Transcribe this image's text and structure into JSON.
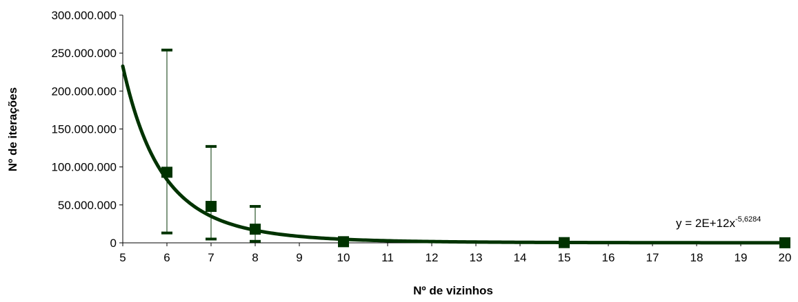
{
  "chart_data": {
    "type": "scatter",
    "title": "",
    "xlabel": "Nº de vizinhos",
    "ylabel": "Nº de iterações",
    "xlim": [
      5,
      20
    ],
    "ylim": [
      0,
      300000000
    ],
    "x_ticks": [
      5,
      6,
      7,
      8,
      9,
      10,
      11,
      12,
      13,
      14,
      15,
      16,
      17,
      18,
      19,
      20
    ],
    "x_tick_labels": [
      "5",
      "6",
      "7",
      "8",
      "9",
      "10",
      "11",
      "12",
      "13",
      "14",
      "15",
      "16",
      "17",
      "18",
      "19",
      "20"
    ],
    "y_ticks": [
      0,
      50000000,
      100000000,
      150000000,
      200000000,
      250000000,
      300000000
    ],
    "y_tick_labels": [
      "0",
      "50.000.000",
      "100.000.000",
      "150.000.000",
      "200.000.000",
      "250.000.000",
      "300.000.000"
    ],
    "grid": false,
    "legend": "none",
    "series": [
      {
        "x": [
          6,
          7,
          8,
          10,
          15,
          20
        ],
        "y": [
          93000000,
          48000000,
          18000000,
          1500000,
          300000,
          100000
        ],
        "error_low": [
          13000000,
          5000000,
          2000000,
          1000000,
          200000,
          50000
        ],
        "error_high": [
          254000000,
          127000000,
          48000000,
          2000000,
          400000,
          150000
        ],
        "marker": "square",
        "color": "#003300"
      }
    ],
    "trendline": {
      "type": "power",
      "a": 2000000000000,
      "b": -5.6284,
      "x_range": [
        5,
        20
      ],
      "color": "#003300",
      "equation_prefix": "y = 2E+12x",
      "equation_exponent": "-5,6284"
    }
  }
}
